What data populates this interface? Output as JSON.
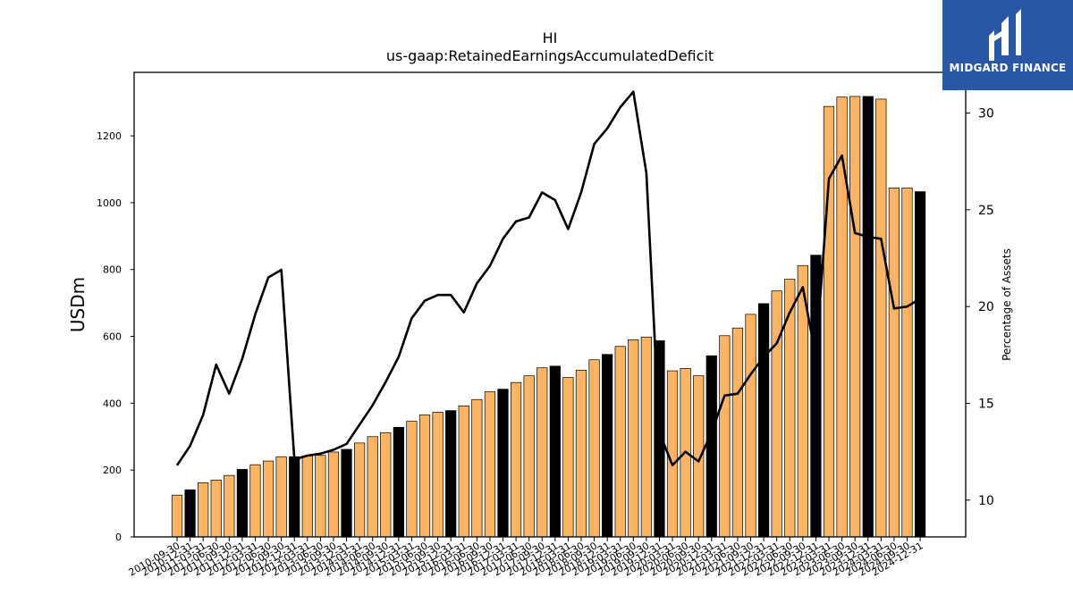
{
  "brand": {
    "name": "MIDGARD FINANCE",
    "color": "#2a56a6"
  },
  "chart_data": {
    "type": "bar",
    "title": "HI",
    "subtitle": "us-gaap:RetainedEarningsAccumulatedDeficit",
    "ylabel": "USDm",
    "y2label": "Percentage of Assets",
    "ylim": [
      0,
      1390
    ],
    "y2lim": [
      8.1,
      32.1
    ],
    "yticks": [
      0,
      200,
      400,
      600,
      800,
      1000,
      1200
    ],
    "y2ticks": [
      10,
      15,
      20,
      25,
      30
    ],
    "colors": {
      "bar": "#fdb462",
      "bar_highlight": "#000000",
      "line": "#000000"
    },
    "categories": [
      "2010-09-30",
      "2010-12-31",
      "2011-03-31",
      "2011-06-30",
      "2011-09-30",
      "2011-12-31",
      "2012-03-31",
      "2012-06-30",
      "2012-09-30",
      "2012-12-31",
      "2013-03-31",
      "2013-06-30",
      "2013-09-30",
      "2013-12-31",
      "2014-03-31",
      "2014-06-30",
      "2014-09-30",
      "2014-12-31",
      "2015-03-31",
      "2015-06-30",
      "2015-09-30",
      "2015-12-31",
      "2016-03-31",
      "2016-06-30",
      "2016-09-30",
      "2016-12-31",
      "2017-03-31",
      "2017-06-30",
      "2017-09-30",
      "2017-12-31",
      "2018-03-31",
      "2018-06-30",
      "2018-09-30",
      "2018-12-31",
      "2019-03-31",
      "2019-06-30",
      "2019-09-30",
      "2019-12-31",
      "2020-03-31",
      "2020-06-30",
      "2020-09-30",
      "2020-12-31",
      "2021-03-31",
      "2021-06-30",
      "2021-09-30",
      "2021-12-31",
      "2022-03-31",
      "2022-06-30",
      "2022-09-30",
      "2022-12-31",
      "2023-03-31",
      "2023-06-30",
      "2023-09-30",
      "2023-12-31",
      "2024-03-31",
      "2024-06-30",
      "2024-09-30",
      "2024-12-31"
    ],
    "series": [
      {
        "kind": "bar",
        "values": [
          125,
          141,
          162,
          170,
          184,
          202,
          216,
          227,
          240,
          240,
          242,
          244,
          254,
          262,
          281,
          300,
          312,
          328,
          346,
          365,
          373,
          378,
          392,
          411,
          434,
          442,
          462,
          482,
          506,
          511,
          477,
          499,
          530,
          546,
          570,
          590,
          598,
          587,
          497,
          504,
          482,
          542,
          602,
          625,
          666,
          698,
          736,
          771,
          812,
          843,
          1288,
          1316,
          1318,
          1318,
          1310,
          1044,
          1044,
          1033
        ],
        "highlight": [
          false,
          true,
          false,
          false,
          false,
          true,
          false,
          false,
          false,
          true,
          false,
          false,
          false,
          true,
          false,
          false,
          false,
          true,
          false,
          false,
          false,
          true,
          false,
          false,
          false,
          true,
          false,
          false,
          false,
          true,
          false,
          false,
          false,
          true,
          false,
          false,
          false,
          true,
          false,
          false,
          false,
          true,
          false,
          false,
          false,
          true,
          false,
          false,
          false,
          true,
          false,
          false,
          false,
          true,
          false,
          false,
          false,
          true
        ]
      },
      {
        "kind": "line",
        "axis": "right",
        "values": [
          11.8,
          12.8,
          14.4,
          17.0,
          15.5,
          17.3,
          19.6,
          21.5,
          21.9,
          12.1,
          12.3,
          12.4,
          12.6,
          12.9,
          13.9,
          14.9,
          16.1,
          17.4,
          19.4,
          20.3,
          20.6,
          20.6,
          19.7,
          21.2,
          22.1,
          23.5,
          24.4,
          24.6,
          25.9,
          25.5,
          24.0,
          25.9,
          28.4,
          29.2,
          30.3,
          31.1,
          26.9,
          13.5,
          11.8,
          12.5,
          12.0,
          13.5,
          15.4,
          15.5,
          16.5,
          17.4,
          18.1,
          19.7,
          21.0,
          17.4,
          26.6,
          27.8,
          23.8,
          23.6,
          23.5,
          19.9,
          20.0,
          20.4
        ]
      }
    ]
  }
}
